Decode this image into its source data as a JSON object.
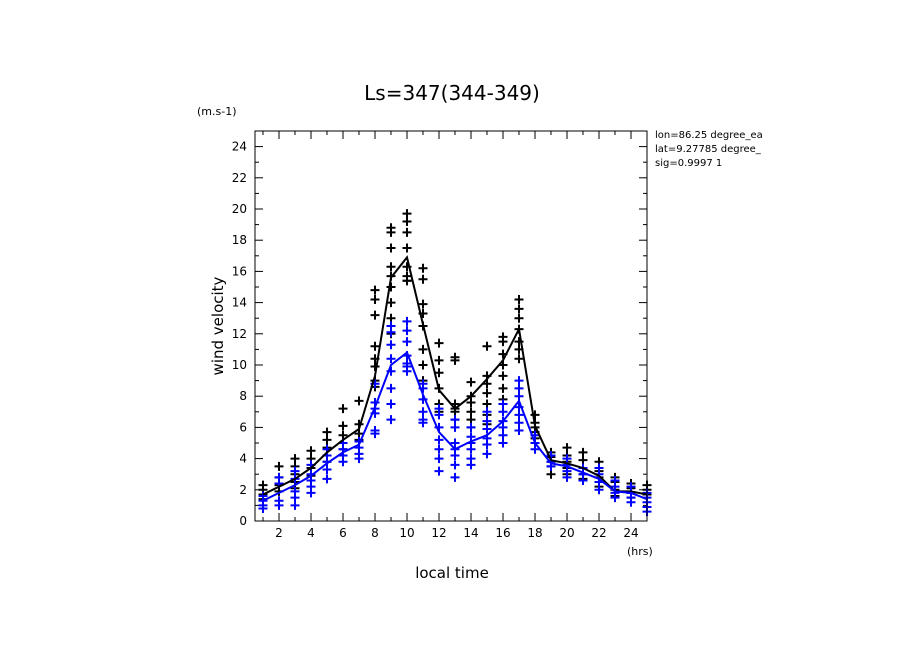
{
  "chart_data": {
    "type": "line",
    "title": "Ls=347(344-349)",
    "xlabel": "local time",
    "ylabel": "wind velocity",
    "x_unit": "(hrs)",
    "y_unit": "(m.s-1)",
    "xlim": [
      0.5,
      25
    ],
    "ylim": [
      0,
      25
    ],
    "x_ticks": [
      2,
      4,
      6,
      8,
      10,
      12,
      14,
      16,
      18,
      20,
      22,
      24
    ],
    "y_ticks": [
      0,
      2,
      4,
      6,
      8,
      10,
      12,
      14,
      16,
      18,
      20,
      22,
      24
    ],
    "grid": false,
    "info_lines": [
      "lon=86.25 degree_ea",
      "lat=9.27785 degree_",
      "sig=0.9997 1"
    ],
    "series": [
      {
        "color": "#000000",
        "x": [
          1,
          2,
          3,
          4,
          5,
          6,
          7,
          8,
          9,
          10,
          11,
          12,
          13,
          14,
          15,
          16,
          17,
          18,
          19,
          20,
          21,
          22,
          23,
          24,
          25
        ],
        "values": [
          1.7,
          2.2,
          2.7,
          3.4,
          4.4,
          5.2,
          5.9,
          9.3,
          15.6,
          16.9,
          12.6,
          8.4,
          7.2,
          8.0,
          9.1,
          10.3,
          12.3,
          6.1,
          3.9,
          3.7,
          3.4,
          2.9,
          1.9,
          1.9,
          1.7
        ]
      },
      {
        "color": "#0000ff",
        "x": [
          1,
          2,
          3,
          4,
          5,
          6,
          7,
          8,
          9,
          10,
          11,
          12,
          13,
          14,
          15,
          16,
          17,
          18,
          19,
          20,
          21,
          22,
          23,
          24,
          25
        ],
        "values": [
          1.3,
          1.8,
          2.3,
          2.9,
          3.7,
          4.4,
          4.9,
          7.3,
          10.0,
          10.8,
          8.1,
          5.7,
          4.6,
          5.1,
          5.5,
          6.4,
          7.7,
          5.0,
          3.7,
          3.5,
          3.1,
          2.7,
          1.9,
          1.8,
          1.4
        ]
      }
    ],
    "scatter": [
      {
        "color": "#000000",
        "points": [
          [
            1,
            2.3
          ],
          [
            1,
            2.0
          ],
          [
            1,
            1.7
          ],
          [
            1,
            1.4
          ],
          [
            2,
            3.5
          ],
          [
            2,
            2.8
          ],
          [
            2,
            2.3
          ],
          [
            2,
            1.9
          ],
          [
            3,
            4.0
          ],
          [
            3,
            3.5
          ],
          [
            3,
            3.0
          ],
          [
            3,
            2.5
          ],
          [
            3,
            2.1
          ],
          [
            4,
            4.5
          ],
          [
            4,
            4.0
          ],
          [
            4,
            3.4
          ],
          [
            4,
            2.9
          ],
          [
            5,
            5.7
          ],
          [
            5,
            5.2
          ],
          [
            5,
            4.7
          ],
          [
            5,
            4.2
          ],
          [
            5,
            3.8
          ],
          [
            6,
            7.2
          ],
          [
            6,
            6.1
          ],
          [
            6,
            5.5
          ],
          [
            6,
            5.0
          ],
          [
            6,
            4.6
          ],
          [
            7,
            7.7
          ],
          [
            7,
            6.2
          ],
          [
            7,
            5.6
          ],
          [
            7,
            5.2
          ],
          [
            8,
            14.8
          ],
          [
            8,
            14.2
          ],
          [
            8,
            13.2
          ],
          [
            8,
            11.2
          ],
          [
            8,
            10.4
          ],
          [
            8,
            9.9
          ],
          [
            8,
            9.0
          ],
          [
            8,
            8.6
          ],
          [
            9,
            18.8
          ],
          [
            9,
            18.5
          ],
          [
            9,
            17.5
          ],
          [
            9,
            16.3
          ],
          [
            9,
            15.7
          ],
          [
            9,
            15.0
          ],
          [
            9,
            14.0
          ],
          [
            9,
            13.0
          ],
          [
            9,
            12.0
          ],
          [
            10,
            19.7
          ],
          [
            10,
            19.2
          ],
          [
            10,
            18.5
          ],
          [
            10,
            17.5
          ],
          [
            10,
            16.3
          ],
          [
            10,
            15.7
          ],
          [
            10,
            15.4
          ],
          [
            10,
            15.4
          ],
          [
            11,
            16.2
          ],
          [
            11,
            15.5
          ],
          [
            11,
            13.9
          ],
          [
            11,
            13.3
          ],
          [
            11,
            12.5
          ],
          [
            11,
            11.0
          ],
          [
            11,
            10.0
          ],
          [
            11,
            9.0
          ],
          [
            12,
            11.4
          ],
          [
            12,
            10.3
          ],
          [
            12,
            9.5
          ],
          [
            12,
            8.5
          ],
          [
            12,
            7.5
          ],
          [
            12,
            7.0
          ],
          [
            13,
            10.5
          ],
          [
            13,
            10.3
          ],
          [
            13,
            7.5
          ],
          [
            13,
            7.2
          ],
          [
            13,
            7.0
          ],
          [
            13,
            6.5
          ],
          [
            14,
            8.9
          ],
          [
            14,
            8.0
          ],
          [
            14,
            7.6
          ],
          [
            14,
            7.0
          ],
          [
            14,
            6.5
          ],
          [
            14,
            6.0
          ],
          [
            15,
            11.2
          ],
          [
            15,
            9.3
          ],
          [
            15,
            8.8
          ],
          [
            15,
            8.2
          ],
          [
            15,
            7.5
          ],
          [
            15,
            6.8
          ],
          [
            15,
            6.2
          ],
          [
            16,
            11.8
          ],
          [
            16,
            11.5
          ],
          [
            16,
            10.7
          ],
          [
            16,
            10.0
          ],
          [
            16,
            9.3
          ],
          [
            16,
            8.5
          ],
          [
            16,
            7.8
          ],
          [
            17,
            14.2
          ],
          [
            17,
            13.6
          ],
          [
            17,
            13.0
          ],
          [
            17,
            12.3
          ],
          [
            17,
            11.5
          ],
          [
            17,
            11.0
          ],
          [
            17,
            10.4
          ],
          [
            18,
            6.8
          ],
          [
            18,
            6.3
          ],
          [
            18,
            6.0
          ],
          [
            18,
            5.7
          ],
          [
            18,
            5.3
          ],
          [
            19,
            4.4
          ],
          [
            19,
            4.1
          ],
          [
            19,
            3.8
          ],
          [
            19,
            3.5
          ],
          [
            19,
            3.0
          ],
          [
            20,
            4.7
          ],
          [
            20,
            4.2
          ],
          [
            20,
            3.8
          ],
          [
            20,
            3.4
          ],
          [
            20,
            3.0
          ],
          [
            21,
            4.4
          ],
          [
            21,
            3.9
          ],
          [
            21,
            3.4
          ],
          [
            21,
            3.0
          ],
          [
            21,
            2.7
          ],
          [
            22,
            3.8
          ],
          [
            22,
            3.2
          ],
          [
            22,
            2.8
          ],
          [
            22,
            2.2
          ],
          [
            23,
            2.8
          ],
          [
            23,
            2.5
          ],
          [
            23,
            2.0
          ],
          [
            23,
            1.6
          ],
          [
            24,
            2.4
          ],
          [
            24,
            2.1
          ],
          [
            24,
            1.8
          ],
          [
            24,
            1.5
          ],
          [
            25,
            2.3
          ],
          [
            25,
            2.0
          ],
          [
            25,
            1.7
          ]
        ]
      },
      {
        "color": "#0000ff",
        "points": [
          [
            1,
            1.6
          ],
          [
            1,
            1.3
          ],
          [
            1,
            1.0
          ],
          [
            1,
            0.8
          ],
          [
            2,
            2.8
          ],
          [
            2,
            2.4
          ],
          [
            2,
            1.3
          ],
          [
            2,
            1.0
          ],
          [
            3,
            3.2
          ],
          [
            3,
            2.7
          ],
          [
            3,
            1.9
          ],
          [
            3,
            1.5
          ],
          [
            3,
            1.0
          ],
          [
            4,
            3.6
          ],
          [
            4,
            3.0
          ],
          [
            4,
            2.6
          ],
          [
            4,
            2.2
          ],
          [
            4,
            1.8
          ],
          [
            5,
            4.6
          ],
          [
            5,
            4.2
          ],
          [
            5,
            3.8
          ],
          [
            5,
            3.3
          ],
          [
            5,
            2.7
          ],
          [
            6,
            5.0
          ],
          [
            6,
            4.6
          ],
          [
            6,
            4.2
          ],
          [
            6,
            3.8
          ],
          [
            7,
            5.1
          ],
          [
            7,
            4.7
          ],
          [
            7,
            4.3
          ],
          [
            7,
            4.0
          ],
          [
            8,
            8.8
          ],
          [
            8,
            7.6
          ],
          [
            8,
            7.2
          ],
          [
            8,
            6.9
          ],
          [
            8,
            5.8
          ],
          [
            8,
            5.6
          ],
          [
            9,
            12.5
          ],
          [
            9,
            12.1
          ],
          [
            9,
            11.3
          ],
          [
            9,
            10.4
          ],
          [
            9,
            9.6
          ],
          [
            9,
            8.5
          ],
          [
            9,
            7.5
          ],
          [
            9,
            6.5
          ],
          [
            10,
            12.8
          ],
          [
            10,
            12.2
          ],
          [
            10,
            11.5
          ],
          [
            10,
            10.6
          ],
          [
            10,
            10.1
          ],
          [
            10,
            9.9
          ],
          [
            10,
            9.6
          ],
          [
            11,
            8.8
          ],
          [
            11,
            8.5
          ],
          [
            11,
            7.8
          ],
          [
            11,
            7.0
          ],
          [
            11,
            6.5
          ],
          [
            11,
            6.3
          ],
          [
            12,
            7.2
          ],
          [
            12,
            6.8
          ],
          [
            12,
            6.0
          ],
          [
            12,
            5.2
          ],
          [
            12,
            4.6
          ],
          [
            12,
            4.0
          ],
          [
            12,
            3.2
          ],
          [
            13,
            6.5
          ],
          [
            13,
            6.0
          ],
          [
            13,
            5.0
          ],
          [
            13,
            4.6
          ],
          [
            13,
            4.2
          ],
          [
            13,
            3.6
          ],
          [
            13,
            2.8
          ],
          [
            14,
            6.0
          ],
          [
            14,
            5.4
          ],
          [
            14,
            5.0
          ],
          [
            14,
            4.6
          ],
          [
            14,
            4.0
          ],
          [
            14,
            3.6
          ],
          [
            15,
            7.0
          ],
          [
            15,
            6.4
          ],
          [
            15,
            5.9
          ],
          [
            15,
            5.3
          ],
          [
            15,
            4.9
          ],
          [
            15,
            4.3
          ],
          [
            16,
            7.5
          ],
          [
            16,
            7.0
          ],
          [
            16,
            6.4
          ],
          [
            16,
            6.0
          ],
          [
            16,
            5.5
          ],
          [
            16,
            5.0
          ],
          [
            17,
            9.0
          ],
          [
            17,
            8.5
          ],
          [
            17,
            8.0
          ],
          [
            17,
            7.3
          ],
          [
            17,
            6.8
          ],
          [
            17,
            6.3
          ],
          [
            17,
            5.8
          ],
          [
            18,
            5.5
          ],
          [
            18,
            5.0
          ],
          [
            18,
            4.6
          ],
          [
            19,
            4.2
          ],
          [
            19,
            3.8
          ],
          [
            19,
            3.5
          ],
          [
            20,
            4.0
          ],
          [
            20,
            3.6
          ],
          [
            20,
            3.2
          ],
          [
            20,
            2.8
          ],
          [
            21,
            3.4
          ],
          [
            21,
            3.0
          ],
          [
            21,
            2.6
          ],
          [
            22,
            3.4
          ],
          [
            22,
            3.0
          ],
          [
            22,
            2.5
          ],
          [
            22,
            2.0
          ],
          [
            23,
            2.6
          ],
          [
            23,
            2.2
          ],
          [
            23,
            1.8
          ],
          [
            23,
            1.5
          ],
          [
            24,
            2.2
          ],
          [
            24,
            1.8
          ],
          [
            24,
            1.5
          ],
          [
            24,
            1.2
          ],
          [
            25,
            1.8
          ],
          [
            25,
            1.5
          ],
          [
            25,
            1.2
          ],
          [
            25,
            0.9
          ],
          [
            25,
            0.6
          ]
        ]
      }
    ]
  }
}
